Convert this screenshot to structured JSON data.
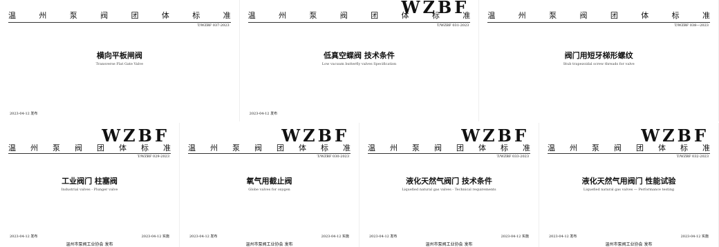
{
  "covers": [
    {
      "org": "温 州 泵 阀 团 体 标 准",
      "code": "T/WZBF 037-2023",
      "title": "横向平板闸阀",
      "subtitle": "Transverse Flat Gate Valve",
      "issued": "2023-04-12 发布"
    },
    {
      "logo": "WZBF",
      "org": "温 州 泵 阀 团 体 标 准",
      "code": "T/WZBF 031-2023",
      "title": "低真空蝶阀 技术条件",
      "subtitle": "Low vacuum butterfly valves Specification",
      "issued": "2023-04-12 发布"
    },
    {
      "org": "温 州 泵 阀 团 体 标 准",
      "code": "T/WZBF 038—2023",
      "title": "阀门用短牙梯形螺纹",
      "subtitle": "Stub trapezoidal screw threads for valve"
    },
    {
      "logo": "WZBF",
      "org": "温 州 泵 阀 团 体 标 准",
      "code": "T/WZBF 029-2023",
      "title": "工业阀门 柱塞阀",
      "subtitle": "Industrial valves - Plunger valve",
      "issued": "2023-04-12 发布",
      "effective": "2023-04-12 实施",
      "publisher": "温州市泵阀工业协会 发布"
    },
    {
      "logo": "WZBF",
      "org": "温 州 泵 阀 团 体 标 准",
      "code": "T/WZBF 030-2023",
      "title": "氧气用截止阀",
      "subtitle": "Globe valves for oxygen",
      "issued": "2023-04-12 发布",
      "effective": "2023-04-12 实施",
      "publisher": "温州市泵阀工业协会 发布"
    },
    {
      "logo": "WZBF",
      "org": "温 州 泵 阀 团 体 标 准",
      "code": "T/WZBF 033-2023",
      "title": "液化天然气阀门 技术条件",
      "subtitle": "Liquefied natural gas valves - Technical requirements",
      "issued": "2023-04-12 发布",
      "effective": "2023-04-12 实施",
      "publisher": "温州市泵阀工业协会 发布"
    },
    {
      "logo": "WZBF",
      "org": "温 州 泵 阀 团 体 标 准",
      "code": "T/WZBF 032-2023",
      "title": "液化天然气用阀门 性能试验",
      "subtitle": "Liquefied natural gas valves — Performance testing",
      "issued": "2023-04-12 发布",
      "effective": "2023-04-12 实施",
      "publisher": "温州市泵阀工业协会 发布"
    }
  ]
}
